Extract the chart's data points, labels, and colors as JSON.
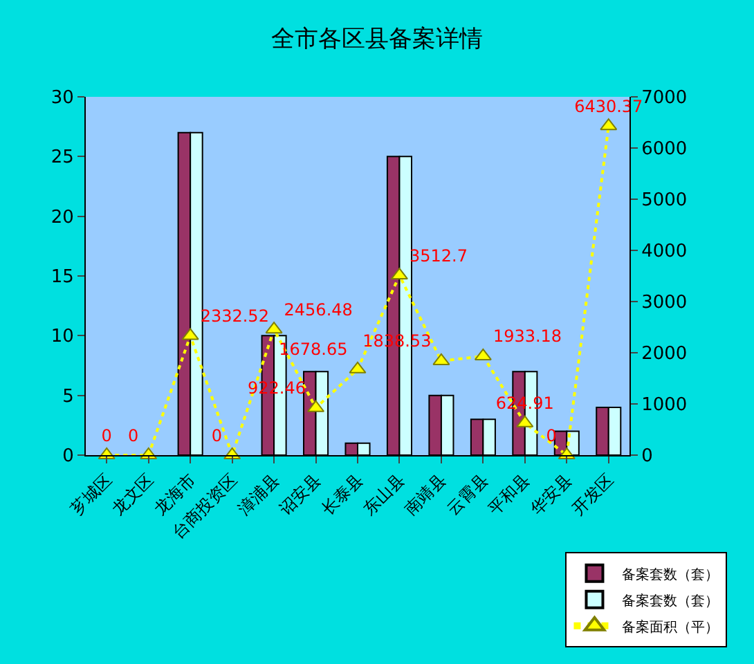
{
  "chart_data": {
    "type": "bar",
    "title": "全市各区县备案详情",
    "categories": [
      "芗城区",
      "龙文区",
      "龙海市",
      "台商投资区",
      "漳浦县",
      "诏安县",
      "长泰县",
      "东山县",
      "南靖县",
      "云霄县",
      "平和县",
      "华安县",
      "开发区"
    ],
    "series": [
      {
        "name": "备案套数（套）",
        "color": "#993366",
        "values": [
          0,
          0,
          27,
          0,
          10,
          7,
          1,
          25,
          5,
          3,
          7,
          2,
          4
        ]
      },
      {
        "name": "备案套数（套）",
        "color": "#ccffff",
        "values": [
          0,
          0,
          27,
          0,
          10,
          7,
          1,
          25,
          5,
          3,
          7,
          2,
          4
        ]
      },
      {
        "name": "备案面积（平）",
        "type": "line",
        "axis": "y2",
        "color": "#ffff00",
        "marker": "triangle",
        "line_style": "dotted",
        "values": [
          0,
          0,
          2332.52,
          0,
          2456.48,
          922.46,
          1678.65,
          3512.7,
          1838.53,
          1933.18,
          624.91,
          0,
          6430.37
        ],
        "value_labels": [
          "0",
          "0",
          "2332.52",
          "0",
          "2456.48",
          "922.46",
          "1678.65",
          "3512.7",
          "1838.53",
          "1933.18",
          "624.91",
          "0",
          "6430.37"
        ]
      }
    ],
    "ylim": [
      0,
      30
    ],
    "yticks": [
      0,
      5,
      10,
      15,
      20,
      25,
      30
    ],
    "y2lim": [
      0,
      7000
    ],
    "y2ticks": [
      0,
      1000,
      2000,
      3000,
      4000,
      5000,
      6000,
      7000
    ],
    "grid": false,
    "legend": "bottom right"
  }
}
